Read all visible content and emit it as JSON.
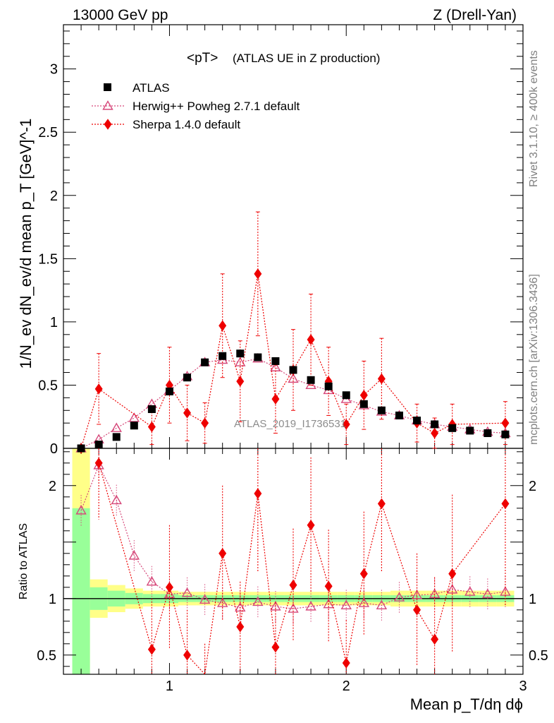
{
  "header": {
    "energy": "13000 GeV pp",
    "process": "Z (Drell-Yan)"
  },
  "side": {
    "rivet": "Rivet 3.1.10, ≥ 400k events",
    "mcplots": "mcplots.cern.ch [arXiv:1306.3436]"
  },
  "watermark": "ATLAS_2019_I1736531",
  "legend": {
    "title_main": "<pT>",
    "title_sub": "(ATLAS UE in Z production)",
    "entries": [
      "ATLAS",
      "Herwig++ Powheg 2.7.1 default",
      "Sherpa 1.4.0 default"
    ]
  },
  "colors": {
    "data": "#000000",
    "herwig": "#d6487a",
    "sherpa": "#ee0000",
    "band_green": "#99ff99",
    "band_yellow": "#ffff88"
  },
  "chart_data": {
    "type": "scatter",
    "main": {
      "ylabel": "1/N_ev dN_ev/d mean p_T [GeV]^-1",
      "xlim": [
        0.4,
        3.0
      ],
      "ylim": [
        0,
        3.35
      ],
      "yticks": [
        0,
        0.5,
        1,
        1.5,
        2,
        2.5,
        3
      ],
      "ytick_labels": [
        "0",
        "0.5",
        "1",
        "1.5",
        "2",
        "2.5",
        "3"
      ]
    },
    "ratio": {
      "ylabel": "Ratio to ATLAS",
      "ylim": [
        0.33,
        2.33
      ],
      "yticks": [
        0.5,
        1,
        2
      ],
      "ytick_labels": [
        "0.5",
        "1",
        "2"
      ]
    },
    "xlabel": "Mean p_T/dη dϕ",
    "xticks": [
      1,
      2,
      3
    ],
    "xtick_labels": [
      "1",
      "2",
      "3"
    ],
    "x": [
      0.5,
      0.6,
      0.7,
      0.8,
      0.9,
      1.0,
      1.1,
      1.2,
      1.3,
      1.4,
      1.5,
      1.6,
      1.7,
      1.8,
      1.9,
      2.0,
      2.1,
      2.2,
      2.3,
      2.4,
      2.5,
      2.6,
      2.7,
      2.8,
      2.9
    ],
    "series": [
      {
        "name": "ATLAS",
        "values": [
          0.0,
          0.03,
          0.09,
          0.18,
          0.31,
          0.45,
          0.56,
          0.68,
          0.73,
          0.75,
          0.72,
          0.69,
          0.62,
          0.54,
          0.49,
          0.42,
          0.35,
          0.3,
          0.26,
          0.22,
          0.19,
          0.16,
          0.14,
          0.12,
          0.11
        ]
      },
      {
        "name": "Herwig++ Powheg 2.7.1 default",
        "values": [
          0.0,
          0.07,
          0.16,
          0.24,
          0.35,
          0.46,
          0.57,
          0.68,
          0.7,
          0.68,
          0.71,
          0.64,
          0.55,
          0.5,
          0.46,
          0.39,
          0.34,
          0.29,
          0.26,
          0.22,
          0.19,
          0.17,
          0.15,
          0.13,
          0.12
        ]
      },
      {
        "name": "Sherpa 1.4.0 default",
        "values": [
          0.0,
          0.47,
          null,
          null,
          0.17,
          0.5,
          0.28,
          0.2,
          0.97,
          0.53,
          1.38,
          0.39,
          0.62,
          0.86,
          0.53,
          0.19,
          0.42,
          0.55,
          null,
          0.2,
          0.12,
          0.19,
          null,
          null,
          0.2
        ],
        "errors": [
          0,
          0.28,
          null,
          null,
          0.14,
          0.3,
          0.22,
          0.16,
          0.41,
          0.32,
          0.49,
          0.27,
          0.32,
          0.36,
          0.27,
          0.16,
          0.27,
          0.32,
          null,
          0.15,
          0.12,
          0.16,
          null,
          null,
          0.17
        ]
      }
    ],
    "ratio_series": [
      {
        "name": "Herwig++ Powheg 2.7.1 default",
        "values": [
          1.78,
          2.18,
          1.87,
          1.38,
          1.15,
          1.04,
          1.05,
          0.99,
          0.96,
          0.92,
          0.97,
          0.93,
          0.91,
          0.93,
          0.95,
          0.94,
          0.96,
          0.94,
          1.01,
          1.03,
          1.04,
          1.08,
          1.06,
          1.04,
          1.06
        ]
      },
      {
        "name": "Sherpa 1.4.0 default",
        "values": [
          null,
          2.2,
          null,
          null,
          0.55,
          1.1,
          0.5,
          0.3,
          1.4,
          0.75,
          1.93,
          0.57,
          1.12,
          1.65,
          1.11,
          0.43,
          1.22,
          1.84,
          null,
          0.9,
          0.64,
          1.22,
          null,
          null,
          1.84
        ],
        "errors": [
          null,
          0.5,
          null,
          null,
          0.45,
          0.55,
          0.4,
          0.3,
          0.6,
          0.4,
          0.7,
          0.4,
          0.5,
          0.6,
          0.5,
          0.38,
          0.55,
          0.6,
          null,
          0.5,
          0.55,
          0.7,
          null,
          null,
          0.9
        ]
      }
    ],
    "bands": {
      "x_edges": [
        0.45,
        0.55,
        0.65,
        0.75,
        0.85,
        0.95,
        1.05,
        1.15,
        1.25,
        1.35,
        1.45,
        1.55,
        1.65,
        1.75,
        1.85,
        1.95,
        2.05,
        2.15,
        2.25,
        2.35,
        2.45,
        2.55,
        2.65,
        2.75,
        2.85,
        2.95
      ],
      "green": [
        0.8,
        0.1,
        0.07,
        0.05,
        0.04,
        0.04,
        0.03,
        0.03,
        0.03,
        0.03,
        0.03,
        0.03,
        0.03,
        0.03,
        0.03,
        0.03,
        0.03,
        0.03,
        0.03,
        0.03,
        0.03,
        0.03,
        0.03,
        0.03,
        0.03
      ],
      "yellow": [
        1.4,
        0.17,
        0.12,
        0.09,
        0.07,
        0.07,
        0.06,
        0.06,
        0.06,
        0.06,
        0.06,
        0.06,
        0.06,
        0.06,
        0.06,
        0.06,
        0.06,
        0.06,
        0.07,
        0.07,
        0.07,
        0.07,
        0.07,
        0.07,
        0.07
      ]
    }
  }
}
